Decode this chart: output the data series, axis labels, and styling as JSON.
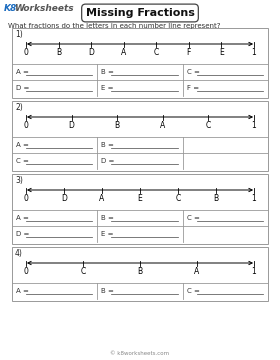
{
  "title": "Missing Fractions",
  "subtitle": "What fractions do the letters in each number line represent?",
  "bg_color": "#ffffff",
  "sections": [
    {
      "number": "1)",
      "letters": [
        "B",
        "D",
        "A",
        "C",
        "F",
        "E"
      ],
      "positions": [
        1,
        2,
        3,
        4,
        5,
        6
      ],
      "total_ticks": 7,
      "answer_rows": [
        [
          "A =",
          "B =",
          "C ="
        ],
        [
          "D =",
          "E =",
          "F ="
        ]
      ]
    },
    {
      "number": "2)",
      "letters": [
        "D",
        "B",
        "A",
        "C"
      ],
      "positions": [
        1,
        2,
        3,
        4
      ],
      "total_ticks": 5,
      "answer_rows": [
        [
          "A =",
          "B =",
          ""
        ],
        [
          "C =",
          "D =",
          ""
        ]
      ]
    },
    {
      "number": "3)",
      "letters": [
        "D",
        "A",
        "E",
        "C",
        "B"
      ],
      "positions": [
        1,
        2,
        3,
        4,
        5
      ],
      "total_ticks": 6,
      "answer_rows": [
        [
          "A =",
          "B =",
          "C ="
        ],
        [
          "D =",
          "E =",
          ""
        ]
      ]
    },
    {
      "number": "4)",
      "letters": [
        "C",
        "B",
        "A"
      ],
      "positions": [
        1,
        2,
        3
      ],
      "total_ticks": 4,
      "answer_rows": [
        [
          "A =",
          "B =",
          "C ="
        ]
      ]
    }
  ]
}
